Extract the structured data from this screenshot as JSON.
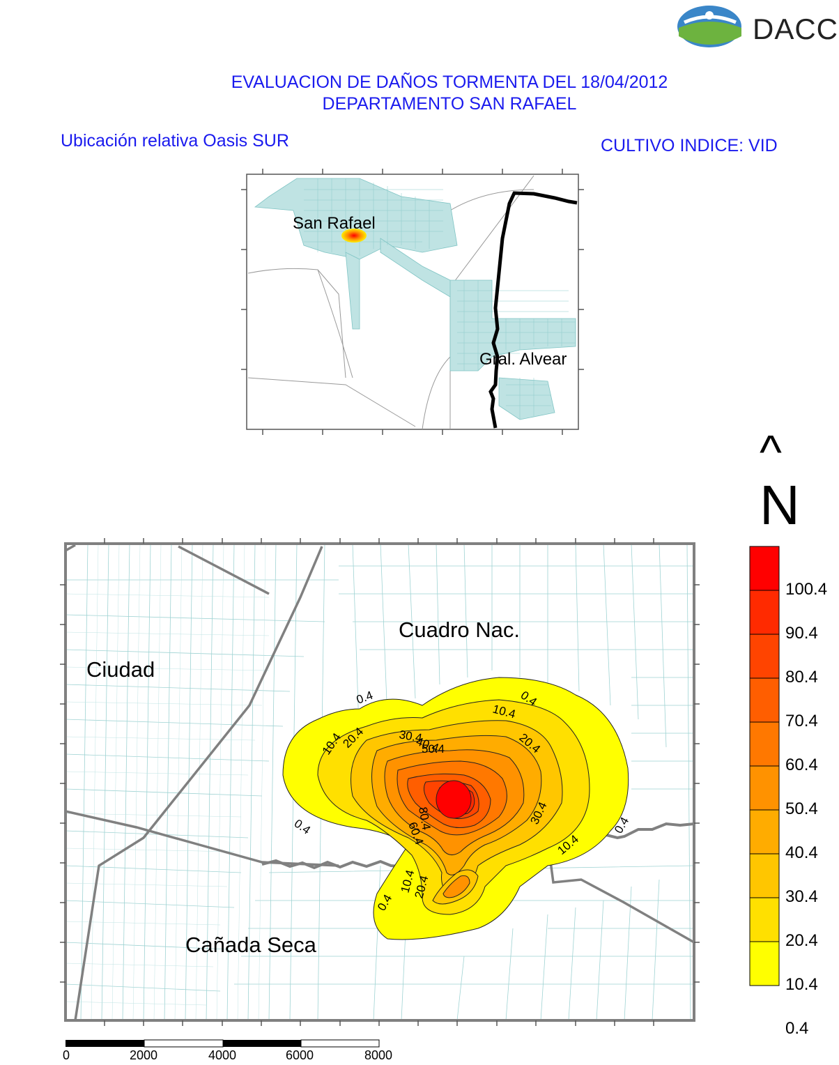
{
  "header": {
    "logo_text": "DACC",
    "title_line1": "EVALUACION DE DAÑOS TORMENTA DEL 18/04/2012",
    "title_line2": "DEPARTAMENTO SAN RAFAEL",
    "location_label": "Ubicación relativa Oasis SUR",
    "crop_label": "CULTIVO INDICE: VID"
  },
  "inset_map": {
    "places": [
      "San Rafael",
      "Gral. Alvear"
    ]
  },
  "north_arrow": {
    "arrow": "^",
    "letter": "N"
  },
  "main_map": {
    "areas": [
      "Cuadro Nac.",
      "Ciudad",
      "Cañada Seca"
    ],
    "contour_labels": [
      "0.4",
      "10.4",
      "20.4",
      "30.4",
      "40.4",
      "50.4",
      "60.4",
      "80.4"
    ]
  },
  "legend": {
    "values": [
      "100.4",
      "90.4",
      "80.4",
      "70.4",
      "60.4",
      "50.4",
      "40.4",
      "30.4",
      "20.4",
      "10.4",
      "0.4"
    ],
    "colors": [
      "#ff0000",
      "#ff2a00",
      "#ff4400",
      "#ff5e00",
      "#ff7800",
      "#ff9200",
      "#ffac00",
      "#ffc600",
      "#ffe000",
      "#ffff00"
    ]
  },
  "scale_bar": {
    "ticks": [
      "0",
      "2000",
      "4000",
      "6000",
      "8000"
    ]
  }
}
